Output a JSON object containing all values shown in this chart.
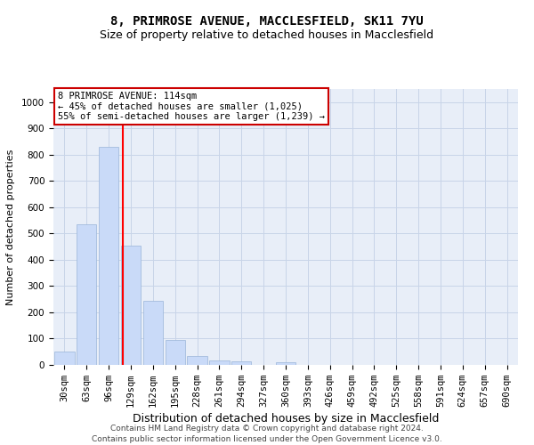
{
  "title_line1": "8, PRIMROSE AVENUE, MACCLESFIELD, SK11 7YU",
  "title_line2": "Size of property relative to detached houses in Macclesfield",
  "xlabel": "Distribution of detached houses by size in Macclesfield",
  "ylabel": "Number of detached properties",
  "footer_line1": "Contains HM Land Registry data © Crown copyright and database right 2024.",
  "footer_line2": "Contains public sector information licensed under the Open Government Licence v3.0.",
  "bin_labels": [
    "30sqm",
    "63sqm",
    "96sqm",
    "129sqm",
    "162sqm",
    "195sqm",
    "228sqm",
    "261sqm",
    "294sqm",
    "327sqm",
    "360sqm",
    "393sqm",
    "426sqm",
    "459sqm",
    "492sqm",
    "525sqm",
    "558sqm",
    "591sqm",
    "624sqm",
    "657sqm",
    "690sqm"
  ],
  "bar_values": [
    50,
    535,
    830,
    455,
    245,
    95,
    35,
    18,
    12,
    0,
    10,
    0,
    0,
    0,
    0,
    0,
    0,
    0,
    0,
    0,
    0
  ],
  "bar_color": "#c9daf8",
  "bar_edgecolor": "#9ab5d8",
  "grid_color": "#c8d4e8",
  "background_color": "#e8eef8",
  "red_line_x": 2.62,
  "annotation_text": "8 PRIMROSE AVENUE: 114sqm\n← 45% of detached houses are smaller (1,025)\n55% of semi-detached houses are larger (1,239) →",
  "annotation_box_facecolor": "#ffffff",
  "annotation_box_edgecolor": "#cc0000",
  "ylim": [
    0,
    1050
  ],
  "yticks": [
    0,
    100,
    200,
    300,
    400,
    500,
    600,
    700,
    800,
    900,
    1000
  ],
  "title_fontsize": 10,
  "subtitle_fontsize": 9,
  "xlabel_fontsize": 9,
  "ylabel_fontsize": 8,
  "tick_fontsize": 7.5,
  "annotation_fontsize": 7.5,
  "footer_fontsize": 6.5
}
